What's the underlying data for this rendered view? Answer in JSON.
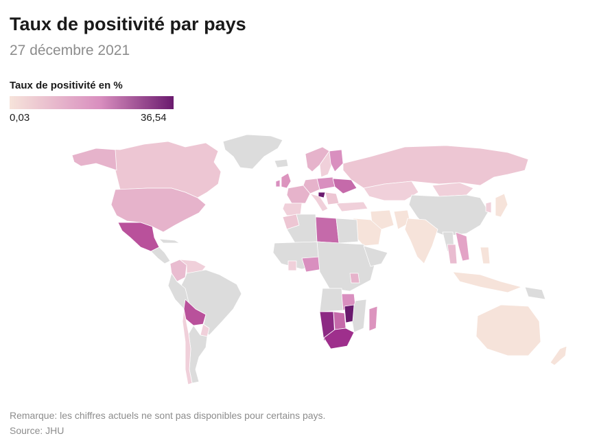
{
  "title": "Taux de positivité par pays",
  "subtitle": "27 décembre 2021",
  "legend": {
    "title": "Taux de positivité en %",
    "min_label": "0,03",
    "max_label": "36,54",
    "color_low": "#f6e3da",
    "color_mid": "#d98fbf",
    "color_high": "#6a1a6e"
  },
  "colors": {
    "no_data": "#dcdcdc",
    "border": "#ffffff"
  },
  "chart_data": {
    "type": "choropleth",
    "region": "world",
    "value_range": [
      0.03,
      36.54
    ],
    "notes": "Approximate positivity levels by country read from colour scale; grey = no data",
    "countries": [
      {
        "name": "États-Unis",
        "level": "low-mid"
      },
      {
        "name": "Canada",
        "level": "low"
      },
      {
        "name": "Mexique",
        "level": "high"
      },
      {
        "name": "Bolivie",
        "level": "high"
      },
      {
        "name": "Colombie",
        "level": "low-mid"
      },
      {
        "name": "Venezuela",
        "level": "low"
      },
      {
        "name": "Russie",
        "level": "low"
      },
      {
        "name": "Ukraine",
        "level": "mid"
      },
      {
        "name": "Inde",
        "level": "very-low"
      },
      {
        "name": "Australie",
        "level": "very-low"
      },
      {
        "name": "Libye",
        "level": "mid-high"
      },
      {
        "name": "Nigeria",
        "level": "mid"
      },
      {
        "name": "Namibie",
        "level": "high"
      },
      {
        "name": "Botswana",
        "level": "mid-high"
      },
      {
        "name": "Zimbabwe",
        "level": "very-high"
      },
      {
        "name": "Afrique du Sud",
        "level": "high"
      },
      {
        "name": "Madagascar",
        "level": "mid"
      },
      {
        "name": "Japon",
        "level": "very-low"
      },
      {
        "name": "Vietnam",
        "level": "low-mid"
      }
    ]
  },
  "footer": {
    "note": "Remarque: les chiffres actuels ne sont pas disponibles pour certains pays.",
    "source": "Source: JHU"
  }
}
